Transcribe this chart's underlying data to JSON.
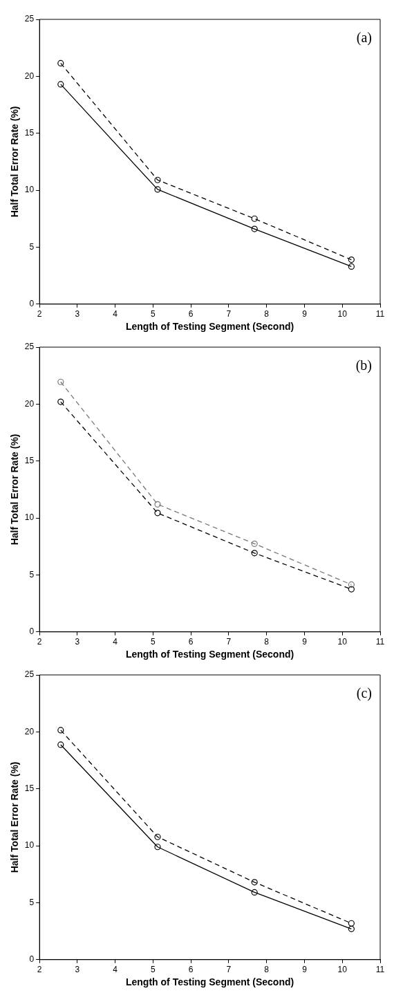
{
  "chart_data": [
    {
      "type": "line",
      "annotations": [
        "(a)"
      ],
      "xlabel": "Length of Testing Segment (Second)",
      "ylabel": "Half Total Error Rate (%)",
      "x": [
        2.56,
        5.12,
        7.68,
        10.24
      ],
      "xlim": [
        2,
        11
      ],
      "xticks": [
        2,
        3,
        4,
        5,
        6,
        7,
        8,
        9,
        10,
        11
      ],
      "ylim": [
        0,
        25
      ],
      "yticks": [
        0,
        5,
        10,
        15,
        20,
        25
      ],
      "grid": false,
      "marker": "circle",
      "series": [
        {
          "color": "#000000",
          "line_style": "dashed",
          "values": [
            21.15,
            10.9,
            7.5,
            3.9
          ]
        },
        {
          "color": "#000000",
          "line_style": "solid",
          "values": [
            19.3,
            10.07,
            6.6,
            3.3
          ]
        }
      ]
    },
    {
      "type": "line",
      "annotations": [
        "(b)"
      ],
      "xlabel": "Length of Testing Segment (Second)",
      "ylabel": "Half Total Error Rate (%)",
      "x": [
        2.56,
        5.12,
        7.68,
        10.24
      ],
      "xlim": [
        2,
        11
      ],
      "xticks": [
        2,
        3,
        4,
        5,
        6,
        7,
        8,
        9,
        10,
        11
      ],
      "ylim": [
        0,
        25
      ],
      "yticks": [
        0,
        5,
        10,
        15,
        20,
        25
      ],
      "grid": false,
      "marker": "circle",
      "series": [
        {
          "color": "#777777",
          "line_style": "dashed",
          "values": [
            21.95,
            11.2,
            7.74,
            4.15
          ]
        },
        {
          "color": "#000000",
          "line_style": "dashed",
          "values": [
            20.2,
            10.44,
            6.92,
            3.75
          ]
        }
      ]
    },
    {
      "type": "line",
      "annotations": [
        "(c)"
      ],
      "xlabel": "Length of Testing Segment (Second)",
      "ylabel": "Half Total Error Rate (%)",
      "x": [
        2.56,
        5.12,
        7.68,
        10.24
      ],
      "xlim": [
        2,
        11
      ],
      "xticks": [
        2,
        3,
        4,
        5,
        6,
        7,
        8,
        9,
        10,
        11
      ],
      "ylim": [
        0,
        25
      ],
      "yticks": [
        0,
        5,
        10,
        15,
        20,
        25
      ],
      "grid": false,
      "marker": "circle",
      "series": [
        {
          "color": "#000000",
          "line_style": "dashed",
          "values": [
            20.15,
            10.78,
            6.8,
            3.19
          ]
        },
        {
          "color": "#000000",
          "line_style": "solid",
          "values": [
            18.87,
            9.9,
            5.91,
            2.7
          ]
        }
      ]
    }
  ]
}
